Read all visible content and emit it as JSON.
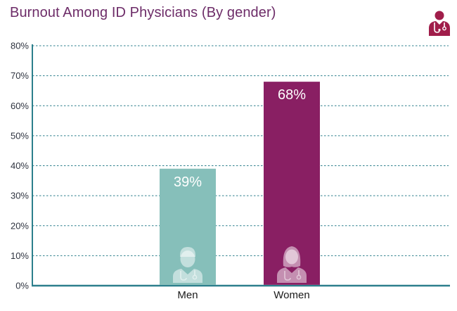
{
  "chart_data": {
    "type": "bar",
    "title": "Burnout Among ID Physicians (By gender)",
    "categories": [
      "Men",
      "Women"
    ],
    "values": [
      39,
      68
    ],
    "data_labels": [
      "39%",
      "68%"
    ],
    "bar_colors": [
      "#86bfba",
      "#891f63"
    ],
    "ylim": [
      0,
      80
    ],
    "yticks": [
      0,
      10,
      20,
      30,
      40,
      50,
      60,
      70,
      80
    ],
    "ytick_labels": [
      "0%",
      "10%",
      "20%",
      "30%",
      "40%",
      "50%",
      "60%",
      "70%",
      "80%"
    ],
    "xlabel": "",
    "ylabel": "",
    "grid": true,
    "legend": "none",
    "bar_icons": [
      "male-doctor-icon",
      "female-doctor-icon"
    ]
  },
  "colors": {
    "title": "#6d2c68",
    "axis": "#2c7f8c",
    "grid": "#2c7f8c",
    "corner_icon": "#a01d4a"
  },
  "icons": {
    "corner": "physician-icon"
  }
}
